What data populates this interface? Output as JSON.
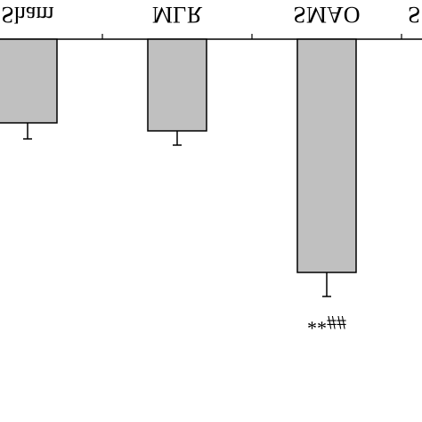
{
  "chart_data": {
    "type": "bar",
    "categories": [
      "Sham",
      "MLR",
      "SMAO",
      "S"
    ],
    "values": [
      94,
      103,
      262,
      null
    ],
    "errors": [
      18,
      16,
      27,
      null
    ],
    "color": "#c0c0c0",
    "annotations": [
      {
        "category": 2,
        "text": "**##"
      }
    ]
  }
}
